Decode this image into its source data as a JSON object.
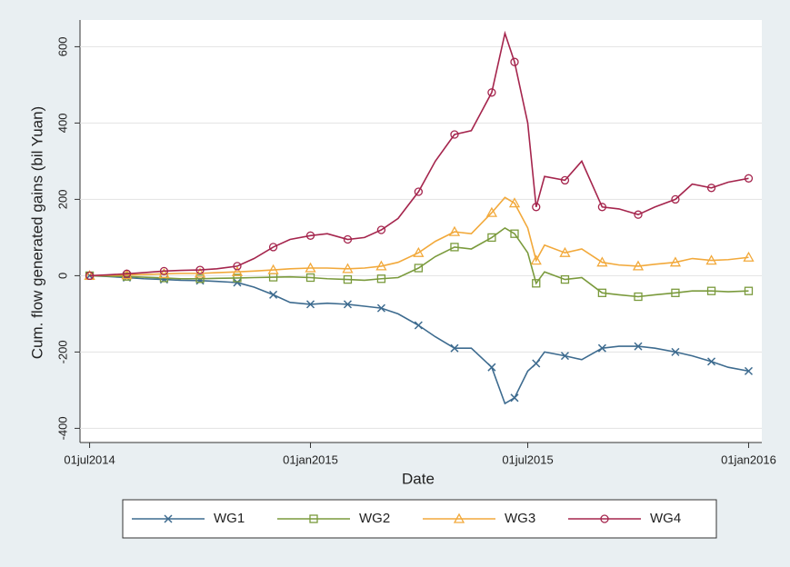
{
  "chart_data": {
    "type": "line",
    "xlabel": "Date",
    "ylabel": "Cum. flow generated gains (bil Yuan)",
    "x": [
      "2014-07-01",
      "2014-07-15",
      "2014-08-01",
      "2014-08-15",
      "2014-09-01",
      "2014-09-15",
      "2014-10-01",
      "2014-10-15",
      "2014-11-01",
      "2014-11-15",
      "2014-12-01",
      "2014-12-15",
      "2015-01-01",
      "2015-01-15",
      "2015-02-01",
      "2015-02-15",
      "2015-03-01",
      "2015-03-15",
      "2015-04-01",
      "2015-04-15",
      "2015-05-01",
      "2015-05-15",
      "2015-06-01",
      "2015-06-12",
      "2015-06-20",
      "2015-07-01",
      "2015-07-08",
      "2015-07-15",
      "2015-08-01",
      "2015-08-15",
      "2015-09-01",
      "2015-09-15",
      "2015-10-01",
      "2015-10-15",
      "2015-11-01",
      "2015-11-15",
      "2015-12-01",
      "2015-12-15",
      "2016-01-01"
    ],
    "series": [
      {
        "name": "WG1",
        "color": "#3d6b8f",
        "values": [
          0,
          -2,
          -5,
          -8,
          -10,
          -12,
          -13,
          -15,
          -18,
          -30,
          -50,
          -70,
          -75,
          -72,
          -75,
          -80,
          -85,
          -100,
          -130,
          -160,
          -190,
          -190,
          -240,
          -335,
          -320,
          -250,
          -230,
          -200,
          -210,
          -220,
          -190,
          -185,
          -185,
          -190,
          -200,
          -210,
          -225,
          -240,
          -250
        ]
      },
      {
        "name": "WG2",
        "color": "#7a9a3c",
        "values": [
          0,
          -1,
          -2,
          -4,
          -6,
          -8,
          -8,
          -7,
          -6,
          -5,
          -4,
          -3,
          -5,
          -8,
          -10,
          -12,
          -8,
          -5,
          20,
          50,
          75,
          70,
          100,
          125,
          110,
          60,
          -20,
          10,
          -10,
          -5,
          -45,
          -50,
          -55,
          -50,
          -45,
          -40,
          -40,
          -42,
          -40
        ]
      },
      {
        "name": "WG3",
        "color": "#f2a93b",
        "values": [
          0,
          1,
          2,
          3,
          5,
          6,
          6,
          8,
          10,
          12,
          15,
          18,
          20,
          20,
          18,
          20,
          25,
          35,
          60,
          90,
          115,
          110,
          165,
          205,
          190,
          125,
          40,
          80,
          60,
          70,
          35,
          28,
          25,
          30,
          35,
          45,
          40,
          42,
          48
        ]
      },
      {
        "name": "WG4",
        "color": "#a5254d",
        "values": [
          0,
          2,
          5,
          8,
          12,
          14,
          15,
          18,
          25,
          45,
          75,
          95,
          105,
          110,
          95,
          100,
          120,
          150,
          220,
          300,
          370,
          380,
          480,
          635,
          560,
          400,
          180,
          260,
          250,
          300,
          180,
          175,
          160,
          180,
          200,
          240,
          230,
          245,
          255
        ]
      }
    ],
    "xlim": [
      "2014-06-23",
      "2016-01-12"
    ],
    "xticks": [
      {
        "value": "2014-07-01",
        "label": "01jul2014"
      },
      {
        "value": "2015-01-01",
        "label": "01jan2015"
      },
      {
        "value": "2015-07-01",
        "label": "01jul2015"
      },
      {
        "value": "2016-01-01",
        "label": "01jan2016"
      }
    ],
    "ylim": [
      -430,
      670
    ],
    "yticks": [
      -400,
      -200,
      0,
      200,
      400,
      600
    ],
    "grid": true
  }
}
